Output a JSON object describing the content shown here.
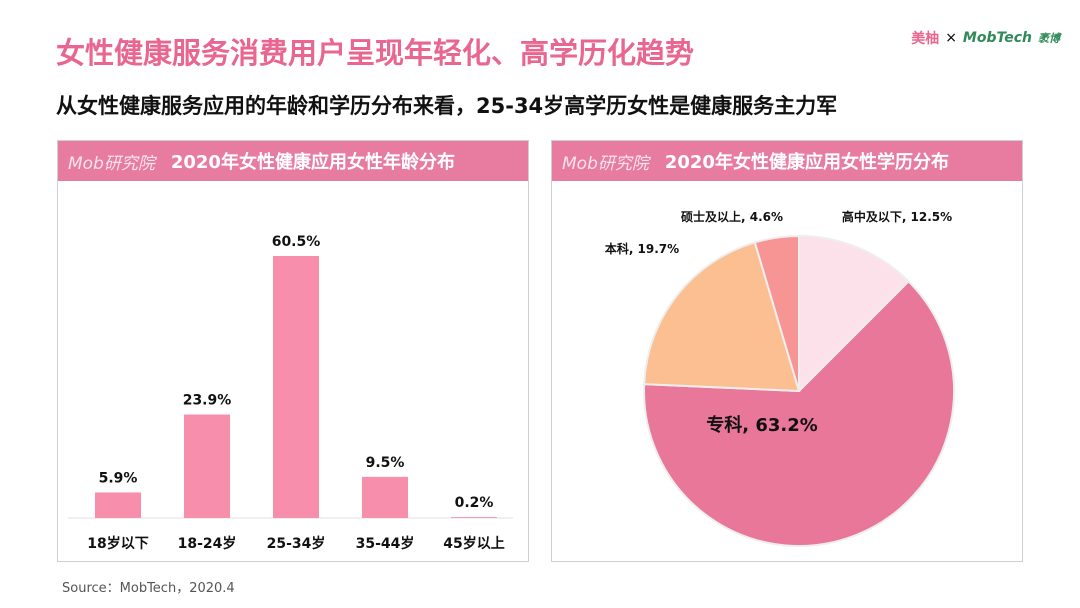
{
  "title": "女性健康服务消费用户呈现年轻化、高学历化趋势",
  "subtitle": "从女性健康服务应用的年龄和学历分布来看，25-34岁高学历女性是健康服务主力军",
  "logos": {
    "meiyou": "美柚",
    "x": "×",
    "mobtech": "MobTech",
    "mobtech_cn": "袤博"
  },
  "panel_brand": "Mob研究院",
  "source": "Source：MobTech，2020.4",
  "colors": {
    "accent": "#e8668f",
    "header": "#e87ca0",
    "bar": "#f78fac"
  },
  "chart_data": [
    {
      "type": "bar",
      "title": "2020年女性健康应用女性年龄分布",
      "categories": [
        "18岁以下",
        "18-24岁",
        "25-34岁",
        "35-44岁",
        "45岁以上"
      ],
      "values": [
        5.9,
        23.9,
        60.5,
        9.5,
        0.2
      ],
      "data_labels": [
        "5.9%",
        "23.9%",
        "60.5%",
        "9.5%",
        "0.2%"
      ],
      "ylim": [
        0,
        60.5
      ],
      "grid": false
    },
    {
      "type": "pie",
      "title": "2020年女性健康应用女性学历分布",
      "slices": [
        {
          "label": "高中及以下, 12.5%",
          "value": 12.5,
          "color": "#fde1ea"
        },
        {
          "label": "专科, 63.2%",
          "value": 63.2,
          "color": "#e8779a"
        },
        {
          "label": "本科, 19.7%",
          "value": 19.7,
          "color": "#fbbf91"
        },
        {
          "label": "硕士及以上, 4.6%",
          "value": 4.6,
          "color": "#f79595"
        }
      ]
    }
  ]
}
